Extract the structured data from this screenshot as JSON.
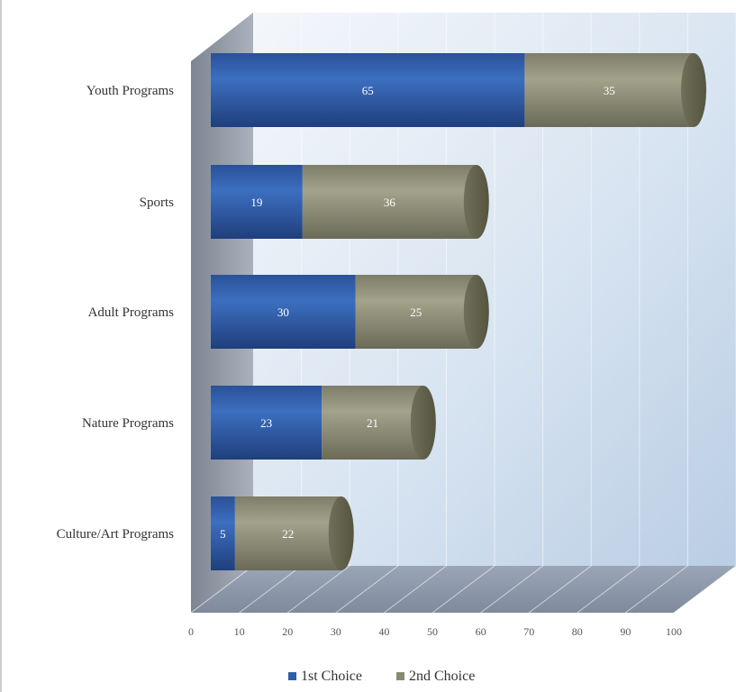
{
  "chart_data": {
    "type": "bar",
    "orientation": "horizontal",
    "stacked": true,
    "three_d": true,
    "categories": [
      "Youth Programs",
      "Sports",
      "Adult Programs",
      "Nature Programs",
      "Culture/Art Programs"
    ],
    "series": [
      {
        "name": "1st Choice",
        "values": [
          65,
          19,
          30,
          23,
          5
        ],
        "color": "#2f5ea8"
      },
      {
        "name": "2nd Choice",
        "values": [
          35,
          36,
          25,
          21,
          22
        ],
        "color": "#8a8a74"
      }
    ],
    "xticks": [
      "0",
      "10",
      "20",
      "30",
      "40",
      "50",
      "60",
      "70",
      "80",
      "90",
      "100"
    ],
    "xlim": [
      0,
      100
    ],
    "title": "",
    "xlabel": "",
    "ylabel": "",
    "grid": true,
    "legend": "bottom"
  }
}
